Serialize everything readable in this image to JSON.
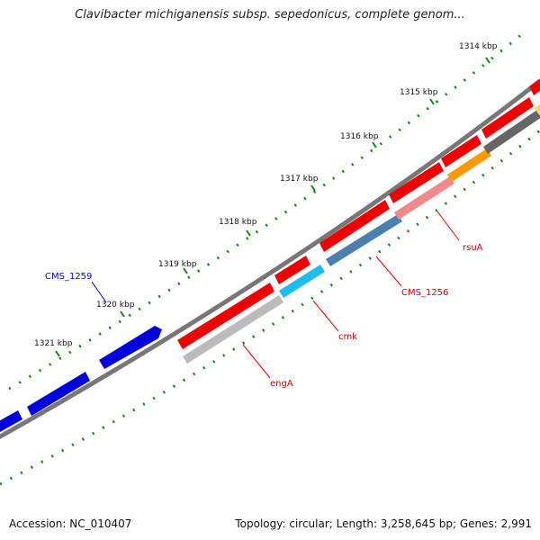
{
  "title": "Clavibacter michiganensis subsp. sepedonicus, complete genom...",
  "footer": {
    "accession": "Accession: NC_010407",
    "summary": "Topology: circular; Length: 3,258,645 bp; Genes: 2,991"
  },
  "ticks": [
    "1314 kbp",
    "1315 kbp",
    "1316 kbp",
    "1317 kbp",
    "1318 kbp",
    "1319 kbp",
    "1320 kbp",
    "1321 kbp"
  ],
  "gene_labels": [
    "CMS_1259",
    "rsuA",
    "CMS_1256",
    "cmk",
    "engA"
  ],
  "colors": {
    "gene_red": "#ee0000",
    "gene_blue": "#0000dd",
    "backbone": "#777777",
    "tick_green": "#118811",
    "rsuA_band": "#f08a8a",
    "cms1256_band": "#4a7fb0",
    "cmk_band": "#22bbee",
    "engA_band": "#bbbbbb",
    "orange_band": "#ff9900",
    "dark_band": "#666666"
  }
}
